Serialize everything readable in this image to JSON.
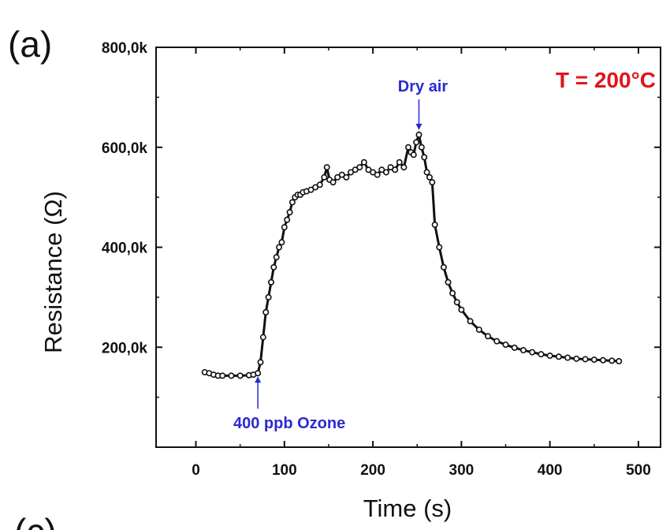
{
  "chart_data": {
    "type": "scatter",
    "panel_label": "(a)",
    "next_panel_label": "(c)",
    "xlabel": "Time (s)",
    "ylabel": "Resistance (Ω)",
    "xlim": [
      -45,
      525
    ],
    "ylim": [
      0,
      800000
    ],
    "xticks": [
      0,
      100,
      200,
      300,
      400,
      500
    ],
    "xtick_labels": [
      "0",
      "100",
      "200",
      "300",
      "400",
      "500"
    ],
    "yticks": [
      200000,
      400000,
      600000,
      800000
    ],
    "ytick_labels": [
      "200,0k",
      "400,0k",
      "600,0k",
      "800,0k"
    ],
    "grid": false,
    "marker": "open-circle",
    "series": [
      {
        "x": [
          10,
          15,
          20,
          25,
          30,
          40,
          50,
          60,
          65,
          70,
          73,
          76,
          79,
          82,
          85,
          88,
          91,
          94,
          97,
          100,
          103,
          106,
          109,
          112,
          115,
          118,
          121,
          125,
          130,
          135,
          140,
          145,
          148,
          151,
          155,
          160,
          165,
          170,
          175,
          180,
          185,
          190,
          195,
          200,
          205,
          210,
          215,
          220,
          225,
          230,
          235,
          240,
          243,
          246,
          249,
          252,
          255,
          258,
          261,
          264,
          267,
          270,
          275,
          280,
          285,
          290,
          295,
          300,
          310,
          320,
          330,
          340,
          350,
          360,
          370,
          380,
          390,
          400,
          410,
          420,
          430,
          440,
          450,
          460,
          470,
          478
        ],
        "y": [
          150000,
          148000,
          145000,
          143000,
          143000,
          143000,
          143000,
          144000,
          145000,
          148000,
          170000,
          220000,
          270000,
          300000,
          330000,
          360000,
          380000,
          400000,
          410000,
          440000,
          455000,
          470000,
          490000,
          500000,
          505000,
          505000,
          510000,
          512000,
          515000,
          520000,
          525000,
          540000,
          560000,
          535000,
          530000,
          540000,
          545000,
          540000,
          550000,
          555000,
          560000,
          570000,
          555000,
          550000,
          545000,
          555000,
          550000,
          560000,
          555000,
          570000,
          560000,
          600000,
          590000,
          585000,
          610000,
          625000,
          600000,
          580000,
          550000,
          540000,
          530000,
          445000,
          400000,
          360000,
          330000,
          308000,
          290000,
          275000,
          252000,
          235000,
          222000,
          212000,
          205000,
          199000,
          194000,
          190000,
          186000,
          183000,
          181000,
          179000,
          177000,
          176000,
          175000,
          174000,
          173000,
          172000
        ]
      }
    ],
    "annotations": [
      {
        "text": "Dry air",
        "x": 252,
        "y": 625000,
        "color": "#2a2ad0"
      },
      {
        "text": "400 ppb Ozone",
        "x": 70,
        "y": 148000,
        "color": "#2a2ad0"
      },
      {
        "text": "T = 200°C",
        "color": "#e0141c"
      }
    ],
    "colors": {
      "markers": "#111111",
      "annotation_blue": "#2a2ad0",
      "annotation_red": "#e0141c"
    }
  }
}
